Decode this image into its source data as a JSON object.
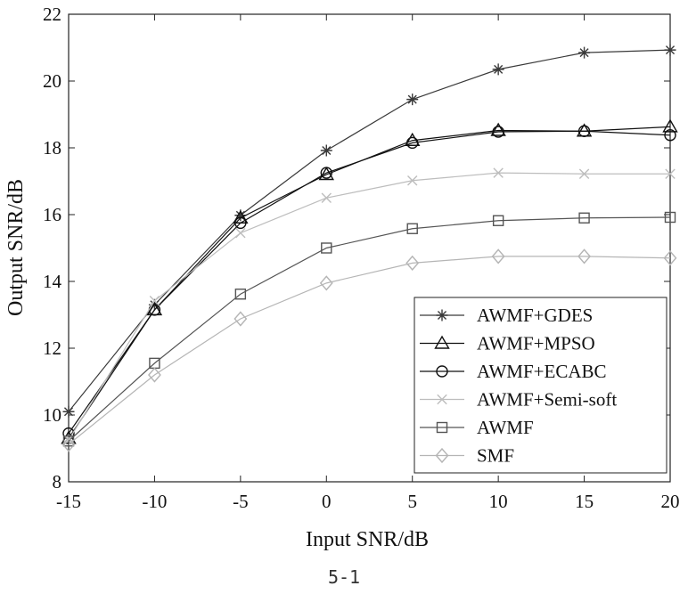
{
  "caption": "5-1",
  "chart_data": {
    "type": "line",
    "xlabel": "Input SNR/dB",
    "ylabel": "Output SNR/dB",
    "x": [
      -15,
      -10,
      -5,
      0,
      5,
      10,
      15,
      20
    ],
    "xlim": [
      -15,
      20
    ],
    "ylim": [
      8,
      22
    ],
    "xticks": [
      -15,
      -10,
      -5,
      0,
      5,
      10,
      15,
      20
    ],
    "yticks": [
      8,
      10,
      12,
      14,
      16,
      18,
      20,
      22
    ],
    "grid": false,
    "legend_position": "bottom-right",
    "series": [
      {
        "name": "AWMF+GDES",
        "marker": "asterisk",
        "color": "#3a3a3a",
        "values": [
          10.1,
          13.3,
          15.98,
          17.92,
          19.45,
          20.35,
          20.85,
          20.93
        ]
      },
      {
        "name": "AWMF+MPSO",
        "marker": "triangle",
        "color": "#111111",
        "values": [
          9.3,
          13.15,
          15.9,
          17.2,
          18.22,
          18.52,
          18.5,
          18.63
        ]
      },
      {
        "name": "AWMF+ECABC",
        "marker": "circle",
        "color": "#111111",
        "values": [
          9.45,
          13.15,
          15.75,
          17.25,
          18.15,
          18.48,
          18.5,
          18.38
        ]
      },
      {
        "name": "AWMF+Semi-soft",
        "marker": "cross",
        "color": "#bdbdbd",
        "values": [
          9.25,
          13.42,
          15.45,
          16.5,
          17.02,
          17.25,
          17.22,
          17.22
        ]
      },
      {
        "name": "AWMF",
        "marker": "square",
        "color": "#555555",
        "values": [
          9.22,
          11.55,
          13.62,
          15.0,
          15.58,
          15.82,
          15.9,
          15.92
        ]
      },
      {
        "name": "SMF",
        "marker": "diamond",
        "color": "#b5b5b5",
        "values": [
          9.12,
          11.2,
          12.88,
          13.95,
          14.55,
          14.75,
          14.75,
          14.7
        ]
      }
    ]
  }
}
